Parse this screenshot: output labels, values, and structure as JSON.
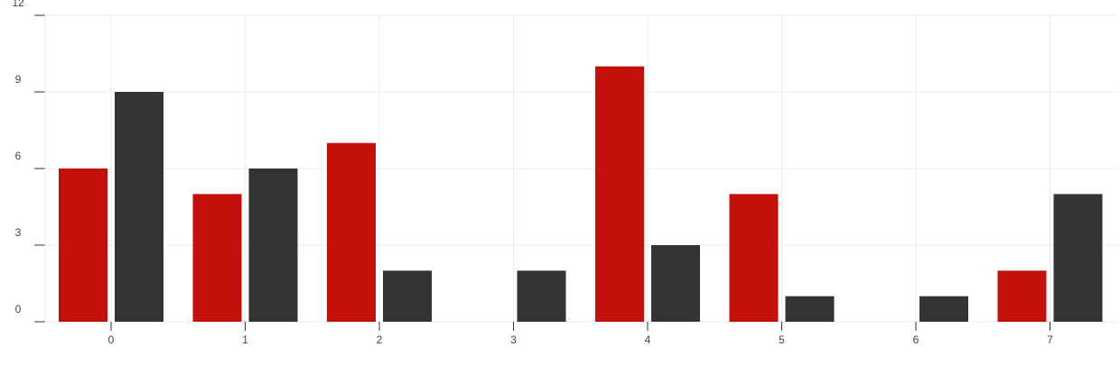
{
  "chart_data": {
    "type": "bar",
    "categories": [
      "0",
      "1",
      "2",
      "3",
      "4",
      "5",
      "6",
      "7"
    ],
    "series": [
      {
        "values": [
          6,
          5,
          7,
          0,
          10,
          5,
          0,
          2
        ],
        "color": "#c4100a"
      },
      {
        "values": [
          9,
          6,
          2,
          2,
          3,
          1,
          1,
          5
        ],
        "color": "#333333"
      }
    ],
    "yticks": [
      "0",
      "3",
      "6",
      "9",
      "12"
    ],
    "ylim": [
      0,
      12
    ],
    "grid": true,
    "legend": "none",
    "gridline_color": "#ebebeb",
    "axis_color": "#333333"
  }
}
